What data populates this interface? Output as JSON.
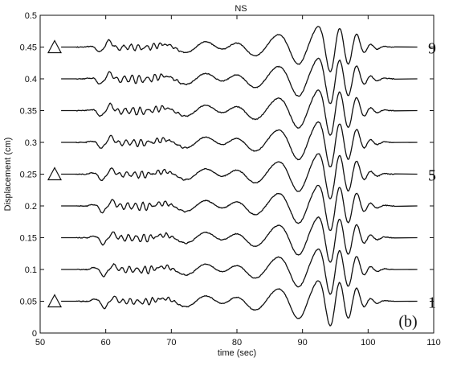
{
  "chart_data": {
    "type": "line",
    "title": "NS",
    "xlabel": "time (sec)",
    "ylabel": "Displacement (cm)",
    "xlim": [
      50,
      110
    ],
    "ylim": [
      0,
      0.5
    ],
    "x_ticks": [
      50,
      60,
      70,
      80,
      90,
      100,
      110
    ],
    "y_ticks": [
      0,
      0.05,
      0.1,
      0.15,
      0.2,
      0.25,
      0.3,
      0.35,
      0.4,
      0.45,
      0.5
    ],
    "x_tick_labels": [
      "50",
      "60",
      "70",
      "80",
      "90",
      "100",
      "110"
    ],
    "y_tick_labels": [
      "0",
      "0.05",
      "0.1",
      "0.15",
      "0.2",
      "0.25",
      "0.3",
      "0.35",
      "0.4",
      "0.45",
      "0.5"
    ],
    "grid": false,
    "trace_start": 55.5,
    "trace_end": 104,
    "trace_amplitude_cm": 0.03,
    "series": [
      {
        "baseline": 0.05,
        "label": "1",
        "marker": "triangle"
      },
      {
        "baseline": 0.1
      },
      {
        "baseline": 0.15
      },
      {
        "baseline": 0.2
      },
      {
        "baseline": 0.25,
        "label": "5",
        "marker": "triangle"
      },
      {
        "baseline": 0.3
      },
      {
        "baseline": 0.35
      },
      {
        "baseline": 0.4
      },
      {
        "baseline": 0.45,
        "label": "9",
        "marker": "triangle"
      }
    ],
    "annotations": [
      {
        "text": "(b)",
        "x": 106,
        "y": 0.015
      }
    ]
  }
}
